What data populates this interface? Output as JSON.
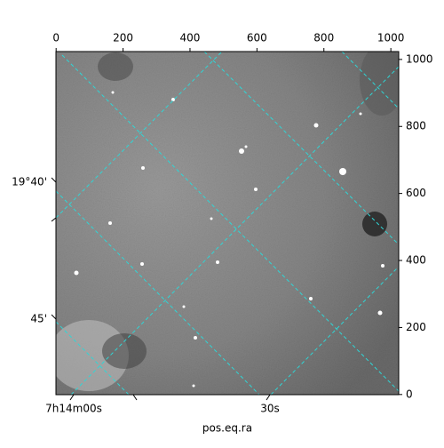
{
  "chart_data": {
    "type": "image",
    "xlabel": "pos.eq.ra",
    "xlim": [
      -0.5,
      1023.5
    ],
    "xticks": [
      0,
      200,
      400,
      600,
      800,
      1000
    ],
    "ylim": [
      -0.5,
      1023.5
    ],
    "yticks": [
      0,
      200,
      400,
      600,
      800,
      1000
    ],
    "ra_ticks": [
      "7h14m00s",
      "30s"
    ],
    "dec_ticks": [
      "19°40'",
      "45'"
    ],
    "grid_color": "#2fd6d6"
  }
}
